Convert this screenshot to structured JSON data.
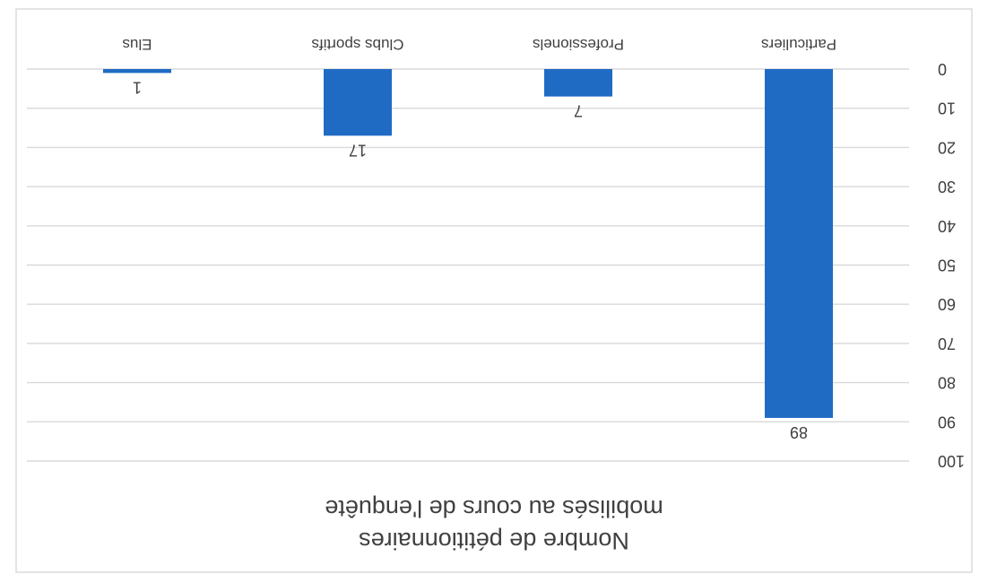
{
  "chart_data": {
    "type": "bar",
    "title_lines": [
      "Nombre de pétitionnaires",
      "mobilisés au cours de l'enquête"
    ],
    "categories": [
      "Particuliers",
      "Professionels",
      "Clubs sportifs",
      "Elus"
    ],
    "values": [
      89,
      7,
      17,
      1
    ],
    "ylim": [
      0,
      100
    ],
    "yticks": [
      0,
      10,
      20,
      30,
      40,
      50,
      60,
      70,
      80,
      90,
      100
    ],
    "ytick_labels": [
      "0",
      "10",
      "20",
      "30",
      "40",
      "50",
      "60",
      "70",
      "80",
      "90",
      "100"
    ],
    "grid": true,
    "legend": "none",
    "bar_color": "#1f6bc4",
    "grid_color": "#d9d9d9",
    "text_color": "#404040"
  }
}
